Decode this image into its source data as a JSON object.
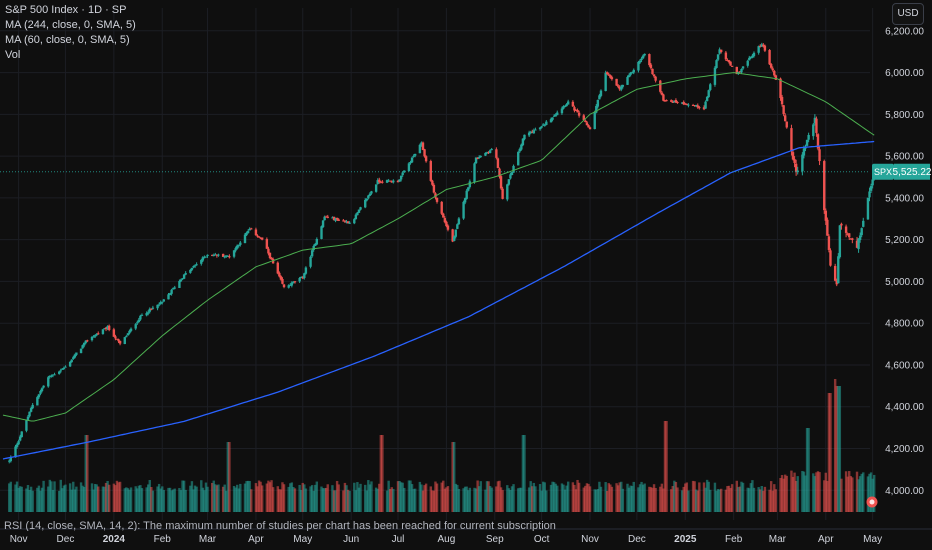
{
  "header": {
    "title": "S&P 500 Index · 1D · SP",
    "indicators": [
      "MA (244, close, 0, SMA, 5)",
      "MA (60, close, 0, SMA, 5)",
      "Vol"
    ]
  },
  "currency_label": "USD",
  "price_badge": {
    "symbol": "SPX",
    "value": "5,525.22",
    "price": 5525.22
  },
  "footnote": "RSI (14, close, SMA, 14, 2): The maximum number of studies per chart has been reached for current subscription",
  "colors": {
    "up": "#26a69a",
    "down": "#ef5350",
    "ma244": "#2962ff",
    "ma60": "#4caf50",
    "background": "#0f0f0f"
  },
  "chart_data": {
    "type": "candlestick",
    "title": "S&P 500 Index · 1D · SP",
    "y_ticks": [
      "6,200.00",
      "6,000.00",
      "5,800.00",
      "5,600.00",
      "5,400.00",
      "5,200.00",
      "5,000.00",
      "4,800.00",
      "4,600.00",
      "4,400.00",
      "4,200.00",
      "4,000.00"
    ],
    "y_tick_values": [
      6200,
      6000,
      5800,
      5600,
      5400,
      5200,
      5000,
      4800,
      4600,
      4400,
      4200,
      4000
    ],
    "ylim": [
      3920,
      6290
    ],
    "x_ticks": [
      "Nov",
      "Dec",
      "2024",
      "Feb",
      "Mar",
      "Apr",
      "May",
      "Jun",
      "Jul",
      "Aug",
      "Sep",
      "Oct",
      "Nov",
      "Dec",
      "2025",
      "Feb",
      "Mar",
      "Apr",
      "May"
    ],
    "x_tick_dates": [
      "2023-11-01",
      "2023-12-01",
      "2024-01-01",
      "2024-02-01",
      "2024-03-01",
      "2024-04-01",
      "2024-05-01",
      "2024-06-01",
      "2024-07-01",
      "2024-08-01",
      "2024-09-01",
      "2024-10-01",
      "2024-11-01",
      "2024-12-01",
      "2025-01-01",
      "2025-02-01",
      "2025-03-01",
      "2025-04-01",
      "2025-05-01"
    ],
    "xlim": [
      "2023-10-22",
      "2025-05-07"
    ],
    "series": [
      {
        "name": "S&P 500 Index",
        "kind": "close",
        "points": [
          [
            "2023-10-26",
            4140
          ],
          [
            "2023-11-01",
            4240
          ],
          [
            "2023-11-10",
            4410
          ],
          [
            "2023-11-20",
            4540
          ],
          [
            "2023-12-01",
            4590
          ],
          [
            "2023-12-15",
            4720
          ],
          [
            "2023-12-28",
            4780
          ],
          [
            "2024-01-05",
            4700
          ],
          [
            "2024-01-19",
            4840
          ],
          [
            "2024-02-01",
            4900
          ],
          [
            "2024-02-15",
            5030
          ],
          [
            "2024-03-01",
            5130
          ],
          [
            "2024-03-15",
            5120
          ],
          [
            "2024-03-28",
            5250
          ],
          [
            "2024-04-05",
            5200
          ],
          [
            "2024-04-19",
            4970
          ],
          [
            "2024-05-01",
            5020
          ],
          [
            "2024-05-15",
            5310
          ],
          [
            "2024-06-01",
            5280
          ],
          [
            "2024-06-18",
            5480
          ],
          [
            "2024-07-01",
            5480
          ],
          [
            "2024-07-16",
            5660
          ],
          [
            "2024-07-25",
            5400
          ],
          [
            "2024-08-05",
            5190
          ],
          [
            "2024-08-20",
            5590
          ],
          [
            "2024-09-01",
            5640
          ],
          [
            "2024-09-06",
            5400
          ],
          [
            "2024-09-20",
            5700
          ],
          [
            "2024-10-01",
            5740
          ],
          [
            "2024-10-18",
            5860
          ],
          [
            "2024-11-01",
            5730
          ],
          [
            "2024-11-11",
            6000
          ],
          [
            "2024-11-20",
            5920
          ],
          [
            "2024-12-06",
            6090
          ],
          [
            "2024-12-18",
            5870
          ],
          [
            "2025-01-02",
            5850
          ],
          [
            "2025-01-13",
            5830
          ],
          [
            "2025-01-23",
            6110
          ],
          [
            "2025-02-03",
            5990
          ],
          [
            "2025-02-19",
            6140
          ],
          [
            "2025-03-01",
            5950
          ],
          [
            "2025-03-13",
            5520
          ],
          [
            "2025-03-25",
            5780
          ],
          [
            "2025-04-04",
            5070
          ],
          [
            "2025-04-08",
            4980
          ],
          [
            "2025-04-10",
            5270
          ],
          [
            "2025-04-21",
            5160
          ],
          [
            "2025-05-02",
            5525
          ]
        ]
      },
      {
        "name": "MA (244, close, 0, SMA, 5)",
        "kind": "ma",
        "points": [
          [
            "2023-10-22",
            4150
          ],
          [
            "2023-12-15",
            4230
          ],
          [
            "2024-02-15",
            4330
          ],
          [
            "2024-04-15",
            4470
          ],
          [
            "2024-06-15",
            4640
          ],
          [
            "2024-08-15",
            4830
          ],
          [
            "2024-10-15",
            5070
          ],
          [
            "2024-12-15",
            5330
          ],
          [
            "2025-01-30",
            5520
          ],
          [
            "2025-03-15",
            5640
          ],
          [
            "2025-05-02",
            5670
          ]
        ]
      },
      {
        "name": "MA (60, close, 0, SMA, 5)",
        "kind": "ma",
        "points": [
          [
            "2023-10-22",
            4360
          ],
          [
            "2023-11-10",
            4330
          ],
          [
            "2023-12-01",
            4370
          ],
          [
            "2024-01-01",
            4530
          ],
          [
            "2024-02-01",
            4740
          ],
          [
            "2024-03-01",
            4910
          ],
          [
            "2024-04-01",
            5070
          ],
          [
            "2024-05-01",
            5150
          ],
          [
            "2024-06-01",
            5180
          ],
          [
            "2024-07-01",
            5300
          ],
          [
            "2024-08-01",
            5440
          ],
          [
            "2024-09-01",
            5500
          ],
          [
            "2024-10-01",
            5580
          ],
          [
            "2024-11-01",
            5800
          ],
          [
            "2024-12-01",
            5920
          ],
          [
            "2025-01-01",
            5970
          ],
          [
            "2025-02-01",
            6000
          ],
          [
            "2025-03-01",
            5970
          ],
          [
            "2025-04-01",
            5860
          ],
          [
            "2025-05-02",
            5700
          ]
        ]
      }
    ],
    "volume": {
      "name": "Vol",
      "level_range": [
        0.15,
        0.95
      ],
      "spikes": [
        [
          "2023-12-15",
          0.55
        ],
        [
          "2024-03-15",
          0.5
        ],
        [
          "2024-06-21",
          0.55
        ],
        [
          "2024-08-05",
          0.5
        ],
        [
          "2024-09-20",
          0.55
        ],
        [
          "2024-12-20",
          0.65
        ],
        [
          "2025-03-21",
          0.6
        ],
        [
          "2025-04-04",
          0.85
        ],
        [
          "2025-04-07",
          0.95
        ],
        [
          "2025-04-09",
          0.9
        ]
      ]
    }
  }
}
